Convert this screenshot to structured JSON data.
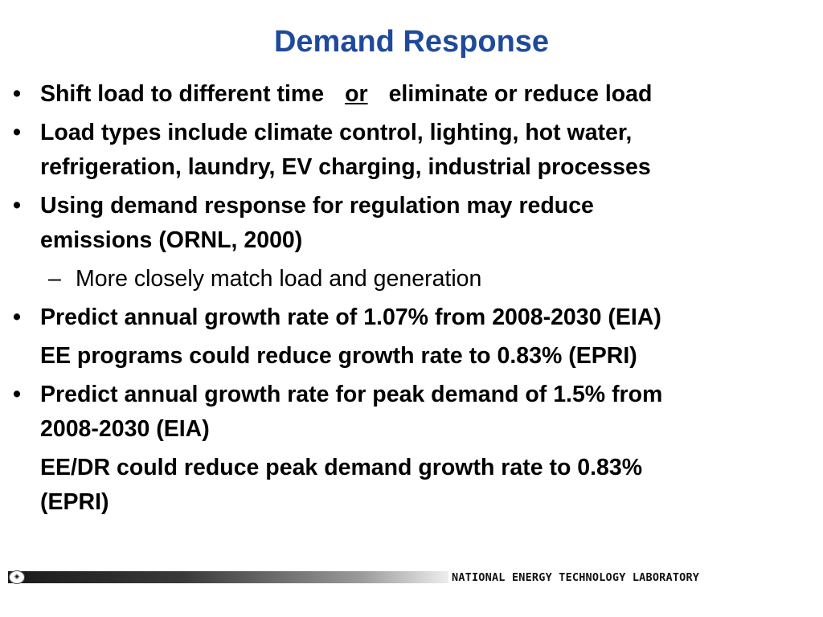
{
  "slide": {
    "title": "Demand Response",
    "bullets": [
      {
        "part1": "Shift load to different time",
        "emphasis": "or",
        "part2": "eliminate or reduce load"
      },
      {
        "line1": "Load types include climate control, lighting, hot water,",
        "line2": "refrigeration, laundry, EV charging, industrial processes"
      },
      {
        "line1": "Using demand response for regulation may reduce",
        "line2": "emissions (ORNL, 2000)"
      },
      {
        "line1": "Predict annual growth rate of 1.07% from 2008-2030 (EIA)"
      },
      {
        "line1": "Predict annual growth rate for peak demand of 1.5% from",
        "line2": "2008-2030  (EIA)"
      }
    ],
    "sub_bullet": "More closely match load and generation",
    "continuation_1": "EE programs could reduce growth rate to 0.83% (EPRI)",
    "continuation_2_line1": "EE/DR could reduce peak demand growth rate to 0.83%",
    "continuation_2_line2": "(EPRI)",
    "bullet_glyph": "•",
    "dash_glyph": "–"
  },
  "footer": {
    "organization": "NATIONAL ENERGY TECHNOLOGY LABORATORY",
    "logo_icon": "netl-logo-icon",
    "logo_glyph": "◈"
  },
  "colors": {
    "title": "#1f4a9c",
    "text": "#000000",
    "footer_bar_dark": "#1a1a1a",
    "footer_bar_light": "#ededed"
  }
}
